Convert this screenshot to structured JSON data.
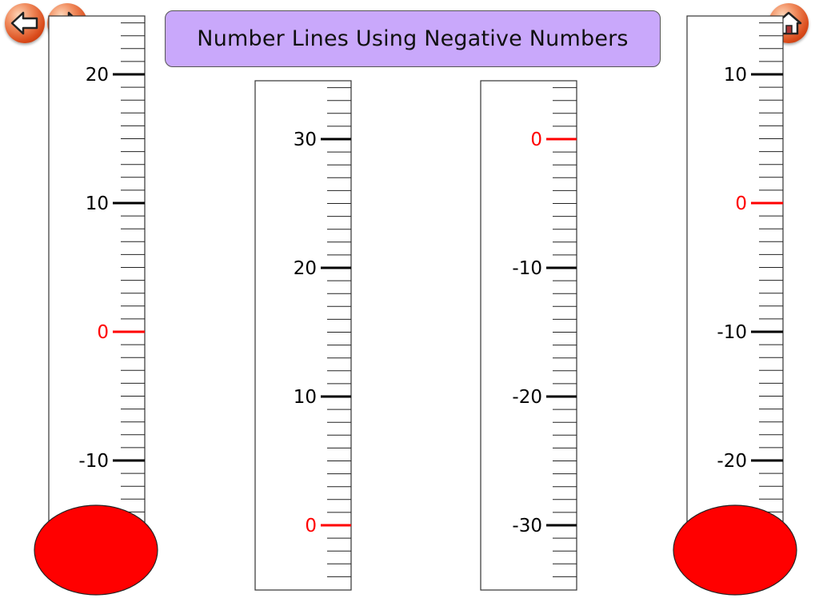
{
  "title": "Number Lines Using Negative Numbers",
  "nav": {
    "back_icon": "back-arrow-icon",
    "forward_icon": "forward-arrow-icon",
    "home_icon": "home-icon"
  },
  "colors": {
    "title_background": "#c9a8fb",
    "bulb": "#ff0000",
    "zero_mark": "#ff0000",
    "major_tick": "#000000",
    "button": "#e0602a"
  },
  "thermometers": [
    {
      "id": "thermometer-1",
      "labels": [
        "20",
        "10",
        "0",
        "-10"
      ],
      "has_bulb": true
    },
    {
      "id": "thermometer-2",
      "labels": [
        "30",
        "20",
        "10",
        "0"
      ],
      "has_bulb": false
    },
    {
      "id": "thermometer-3",
      "labels": [
        "0",
        "-10",
        "-20",
        "-30"
      ],
      "has_bulb": false
    },
    {
      "id": "thermometer-4",
      "labels": [
        "10",
        "0",
        "-10",
        "-20"
      ],
      "has_bulb": true
    }
  ]
}
